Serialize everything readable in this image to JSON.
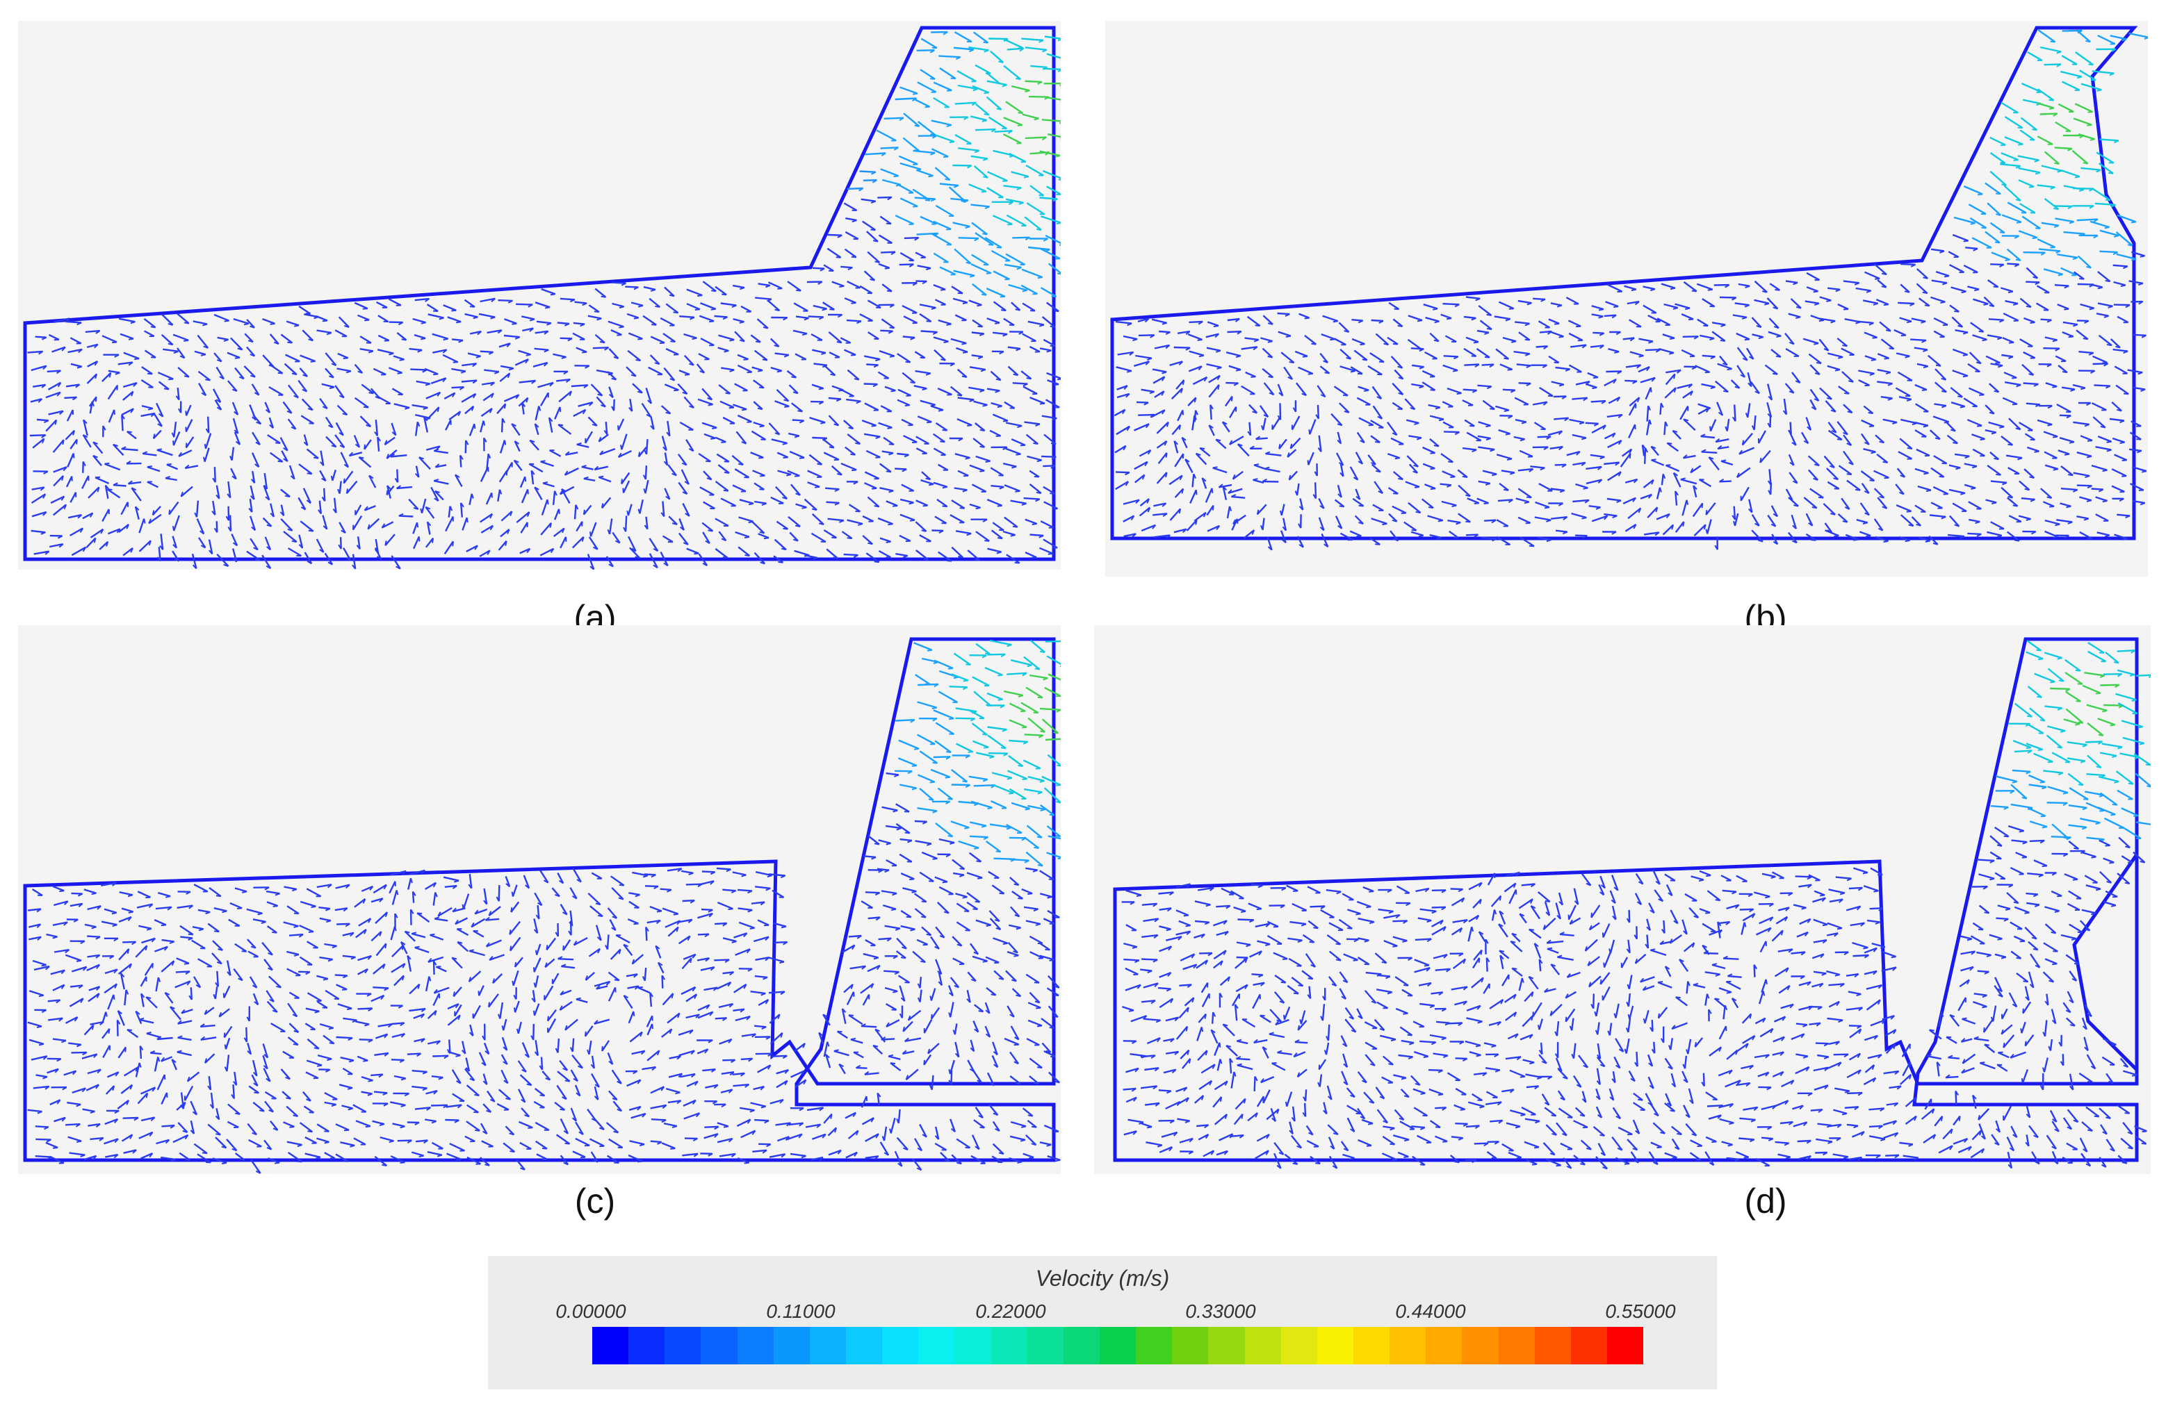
{
  "figure": {
    "panels": [
      {
        "id": "a",
        "caption": "(a)",
        "variant": "jet-bottom"
      },
      {
        "id": "b",
        "caption": "(b)",
        "variant": "inlet-top"
      },
      {
        "id": "c",
        "caption": "(c)",
        "variant": "jet-bottom"
      },
      {
        "id": "d",
        "caption": "(d)",
        "variant": "inlet-top"
      }
    ]
  },
  "legend": {
    "title": "Velocity (m/s)",
    "ticks": [
      "0.00000",
      "0.11000",
      "0.22000",
      "0.33000",
      "0.44000",
      "0.55000"
    ],
    "colors": [
      "#0000ff",
      "#0a2cff",
      "#0a4aff",
      "#0a64ff",
      "#0a7eff",
      "#0a98ff",
      "#0ab2ff",
      "#0acaff",
      "#0ae0ff",
      "#0af0f0",
      "#0af0d8",
      "#0ae8b8",
      "#0ae098",
      "#0ad878",
      "#0ad050",
      "#40d020",
      "#70d010",
      "#98d810",
      "#c0e010",
      "#e0e810",
      "#f8f000",
      "#ffd800",
      "#ffc000",
      "#ffa800",
      "#ff9000",
      "#ff7800",
      "#ff5800",
      "#ff3000",
      "#ff0000"
    ]
  }
}
